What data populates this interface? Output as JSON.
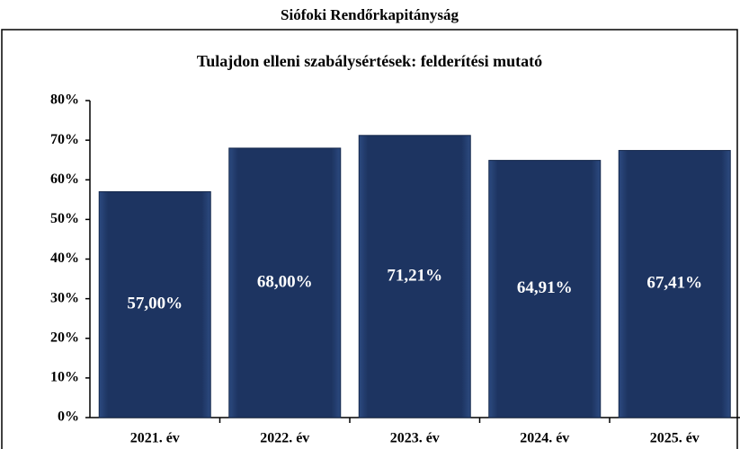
{
  "header": {
    "title": "Siófoki Rendőrkapitányság"
  },
  "chart_data": {
    "type": "bar",
    "title": "Tulajdon elleni szabálysértések: felderítési mutató",
    "categories": [
      "2021. év",
      "2022. év",
      "2023. év",
      "2024. év",
      "2025. év"
    ],
    "values": [
      57.0,
      68.0,
      71.21,
      64.91,
      67.41
    ],
    "value_labels": [
      "57,00%",
      "68,00%",
      "71,21%",
      "64,91%",
      "67,41%"
    ],
    "color": "#1d3461",
    "ylim": [
      0,
      80
    ],
    "yticks": [
      {
        "value": 0,
        "label": "0%"
      },
      {
        "value": 10,
        "label": "10%"
      },
      {
        "value": 20,
        "label": "20%"
      },
      {
        "value": 30,
        "label": "30%"
      },
      {
        "value": 40,
        "label": "40%"
      },
      {
        "value": 50,
        "label": "50%"
      },
      {
        "value": 60,
        "label": "60%"
      },
      {
        "value": 70,
        "label": "70%"
      },
      {
        "value": 80,
        "label": "80%"
      }
    ]
  }
}
